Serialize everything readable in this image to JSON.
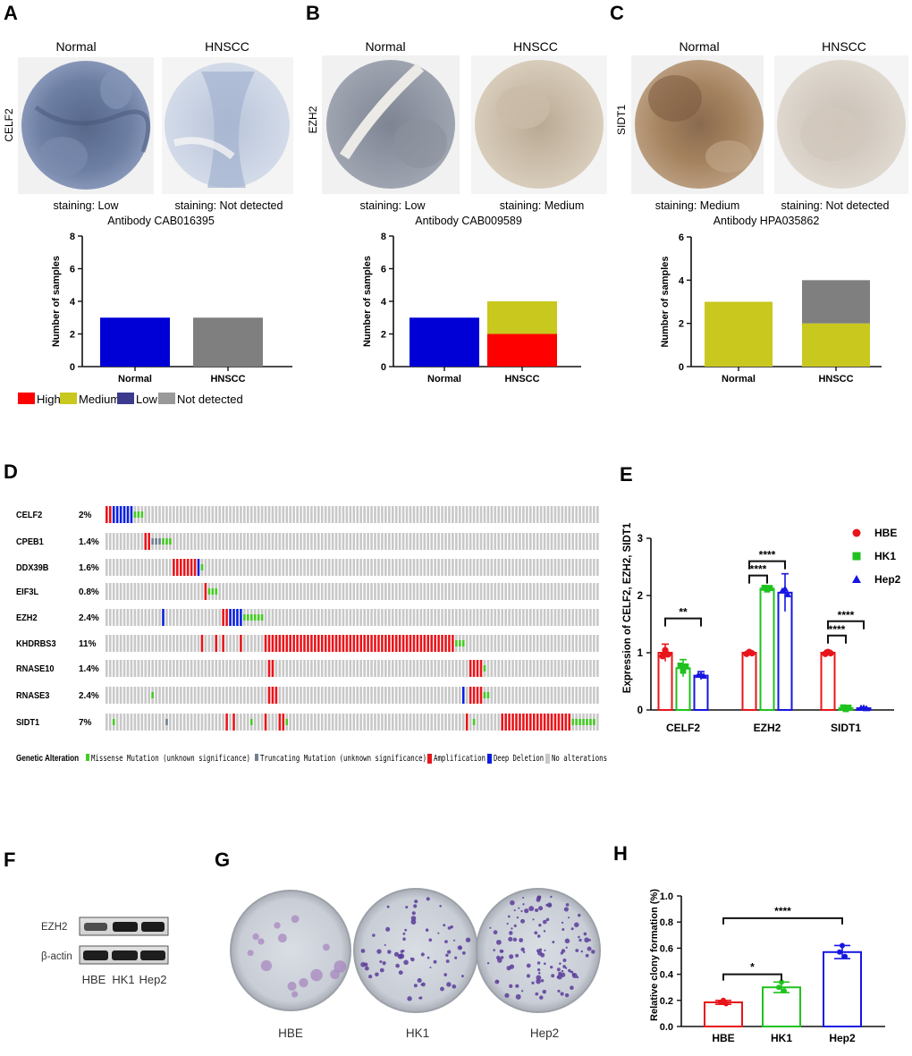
{
  "panel_letters": [
    "A",
    "B",
    "C",
    "D",
    "E",
    "F",
    "G",
    "H"
  ],
  "panelA": {
    "gene": "CELF2",
    "normal_title": "Normal",
    "tumor_title": "HNSCC",
    "normal_staining": "staining: Low",
    "tumor_staining": "staining: Not detected",
    "antibody": "Antibody CAB016395",
    "chart": {
      "type": "bar",
      "ylabel": "Number of samples",
      "ylim": [
        0,
        8
      ],
      "yticks": [
        "0",
        "2",
        "4",
        "6",
        "8"
      ],
      "categories": [
        "Normal",
        "HNSCC"
      ],
      "stacks": [
        [
          {
            "level": "Low",
            "value": 3,
            "color": "#0000d6"
          }
        ],
        [
          {
            "level": "Not detected",
            "value": 3,
            "color": "#7f7f7f"
          }
        ]
      ]
    }
  },
  "panelB": {
    "gene": "EZH2",
    "normal_title": "Normal",
    "tumor_title": "HNSCC",
    "normal_staining": "staining: Low",
    "tumor_staining": "staining: Medium",
    "antibody": "Antibody CAB009589",
    "chart": {
      "type": "bar",
      "ylabel": "Number of samples",
      "ylim": [
        0,
        8
      ],
      "yticks": [
        "0",
        "2",
        "4",
        "6",
        "8"
      ],
      "categories": [
        "Normal",
        "HNSCC"
      ],
      "stacks": [
        [
          {
            "level": "Low",
            "value": 3,
            "color": "#0000d6"
          }
        ],
        [
          {
            "level": "High",
            "value": 2,
            "color": "#ff0000"
          },
          {
            "level": "Medium",
            "value": 2,
            "color": "#c8c81e"
          }
        ]
      ]
    }
  },
  "panelC": {
    "gene": "SIDT1",
    "normal_title": "Normal",
    "tumor_title": "HNSCC",
    "normal_staining": "staining: Medium",
    "tumor_staining": "staining: Not detected",
    "antibody": "Antibody HPA035862",
    "chart": {
      "type": "bar",
      "ylabel": "Number of samples",
      "ylim": [
        0,
        6
      ],
      "yticks": [
        "0",
        "2",
        "4",
        "6"
      ],
      "categories": [
        "Normal",
        "HNSCC"
      ],
      "stacks": [
        [
          {
            "level": "Medium",
            "value": 3,
            "color": "#c8c81e"
          }
        ],
        [
          {
            "level": "Medium",
            "value": 2,
            "color": "#c8c81e"
          },
          {
            "level": "Not detected",
            "value": 2,
            "color": "#7f7f7f"
          }
        ]
      ]
    }
  },
  "staining_legend": [
    {
      "label": "High",
      "color": "#ff0000"
    },
    {
      "label": "Medium",
      "color": "#c8c81e"
    },
    {
      "label": "Low",
      "color": "#3b3b8e"
    },
    {
      "label": "Not detected",
      "color": "#999999"
    }
  ],
  "panelD": {
    "rows": [
      {
        "gene": "CELF2",
        "pct": "2%"
      },
      {
        "gene": "CPEB1",
        "pct": "1.4%"
      },
      {
        "gene": "DDX39B",
        "pct": "1.6%"
      },
      {
        "gene": "EIF3L",
        "pct": "0.8%"
      },
      {
        "gene": "EZH2",
        "pct": "2.4%"
      },
      {
        "gene": "KHDRBS3",
        "pct": "11%"
      },
      {
        "gene": "RNASE10",
        "pct": "1.4%"
      },
      {
        "gene": "RNASE3",
        "pct": "2.4%"
      },
      {
        "gene": "SIDT1",
        "pct": "7%"
      }
    ],
    "legend_title": "Genetic Alteration",
    "legend": [
      {
        "label": "Missense Mutation (unknown significance)",
        "color": "#44cc22"
      },
      {
        "label": "Truncating Mutation (unknown significance)",
        "color": "#708090"
      },
      {
        "label": "Amplification",
        "color": "#e8151b"
      },
      {
        "label": "Deep Deletion",
        "color": "#0a1fe0"
      },
      {
        "label": "No alterations",
        "color": "#c8c8c8"
      }
    ]
  },
  "panelE": {
    "chart_data": {
      "type": "bar",
      "ylabel": "Expression of CELF2, EZH2, SIDT1",
      "ylim": [
        0,
        3
      ],
      "yticks": [
        "0",
        "1",
        "2",
        "3"
      ],
      "categories": [
        "CELF2",
        "EZH2",
        "SIDT1"
      ],
      "series": [
        {
          "name": "HBE",
          "color": "#e8151b",
          "marker": "circle",
          "values": [
            1.0,
            1.0,
            1.0
          ],
          "errors": [
            0.15,
            0.02,
            0.04
          ]
        },
        {
          "name": "HK1",
          "color": "#1fc21f",
          "marker": "square",
          "values": [
            0.73,
            2.12,
            0.03
          ],
          "errors": [
            0.15,
            0.05,
            0.01
          ]
        },
        {
          "name": "Hep2",
          "color": "#1616e0",
          "marker": "triangle",
          "values": [
            0.6,
            2.05,
            0.03
          ],
          "errors": [
            0.07,
            0.33,
            0.01
          ]
        }
      ],
      "significance": [
        {
          "label": "**",
          "category": "CELF2",
          "from": "HBE",
          "to": "Hep2",
          "y": 1.6
        },
        {
          "label": "****",
          "category": "EZH2",
          "from": "HBE",
          "to": "HK1",
          "y": 2.35
        },
        {
          "label": "****",
          "category": "EZH2",
          "from": "HBE",
          "to": "Hep2",
          "y": 2.6
        },
        {
          "label": "****",
          "category": "SIDT1",
          "from": "HBE",
          "to": "HK1",
          "y": 1.3
        },
        {
          "label": "****",
          "category": "SIDT1",
          "from": "HBE",
          "to": "Hep2",
          "y": 1.55
        }
      ]
    }
  },
  "panelF": {
    "bands": [
      "EZH2",
      "β-actin"
    ],
    "lanes": [
      "HBE",
      "HK1",
      "Hep2"
    ]
  },
  "panelG": {
    "labels": [
      "HBE",
      "HK1",
      "Hep2"
    ]
  },
  "panelH": {
    "chart_data": {
      "type": "bar",
      "ylabel": "Relative clony formation (%)",
      "ylim": [
        0,
        1.0
      ],
      "yticks": [
        "0.0",
        "0.2",
        "0.4",
        "0.6",
        "0.8",
        "1.0"
      ],
      "categories": [
        "HBE",
        "HK1",
        "Hep2"
      ],
      "colors": [
        "#e8151b",
        "#1fc21f",
        "#1616e0"
      ],
      "values": [
        0.185,
        0.3,
        0.57
      ],
      "errors": [
        0.015,
        0.04,
        0.05
      ],
      "significance": [
        {
          "label": "*",
          "from": "HBE",
          "to": "HK1",
          "y": 0.4
        },
        {
          "label": "****",
          "from": "HBE",
          "to": "Hep2",
          "y": 0.83
        }
      ]
    }
  }
}
